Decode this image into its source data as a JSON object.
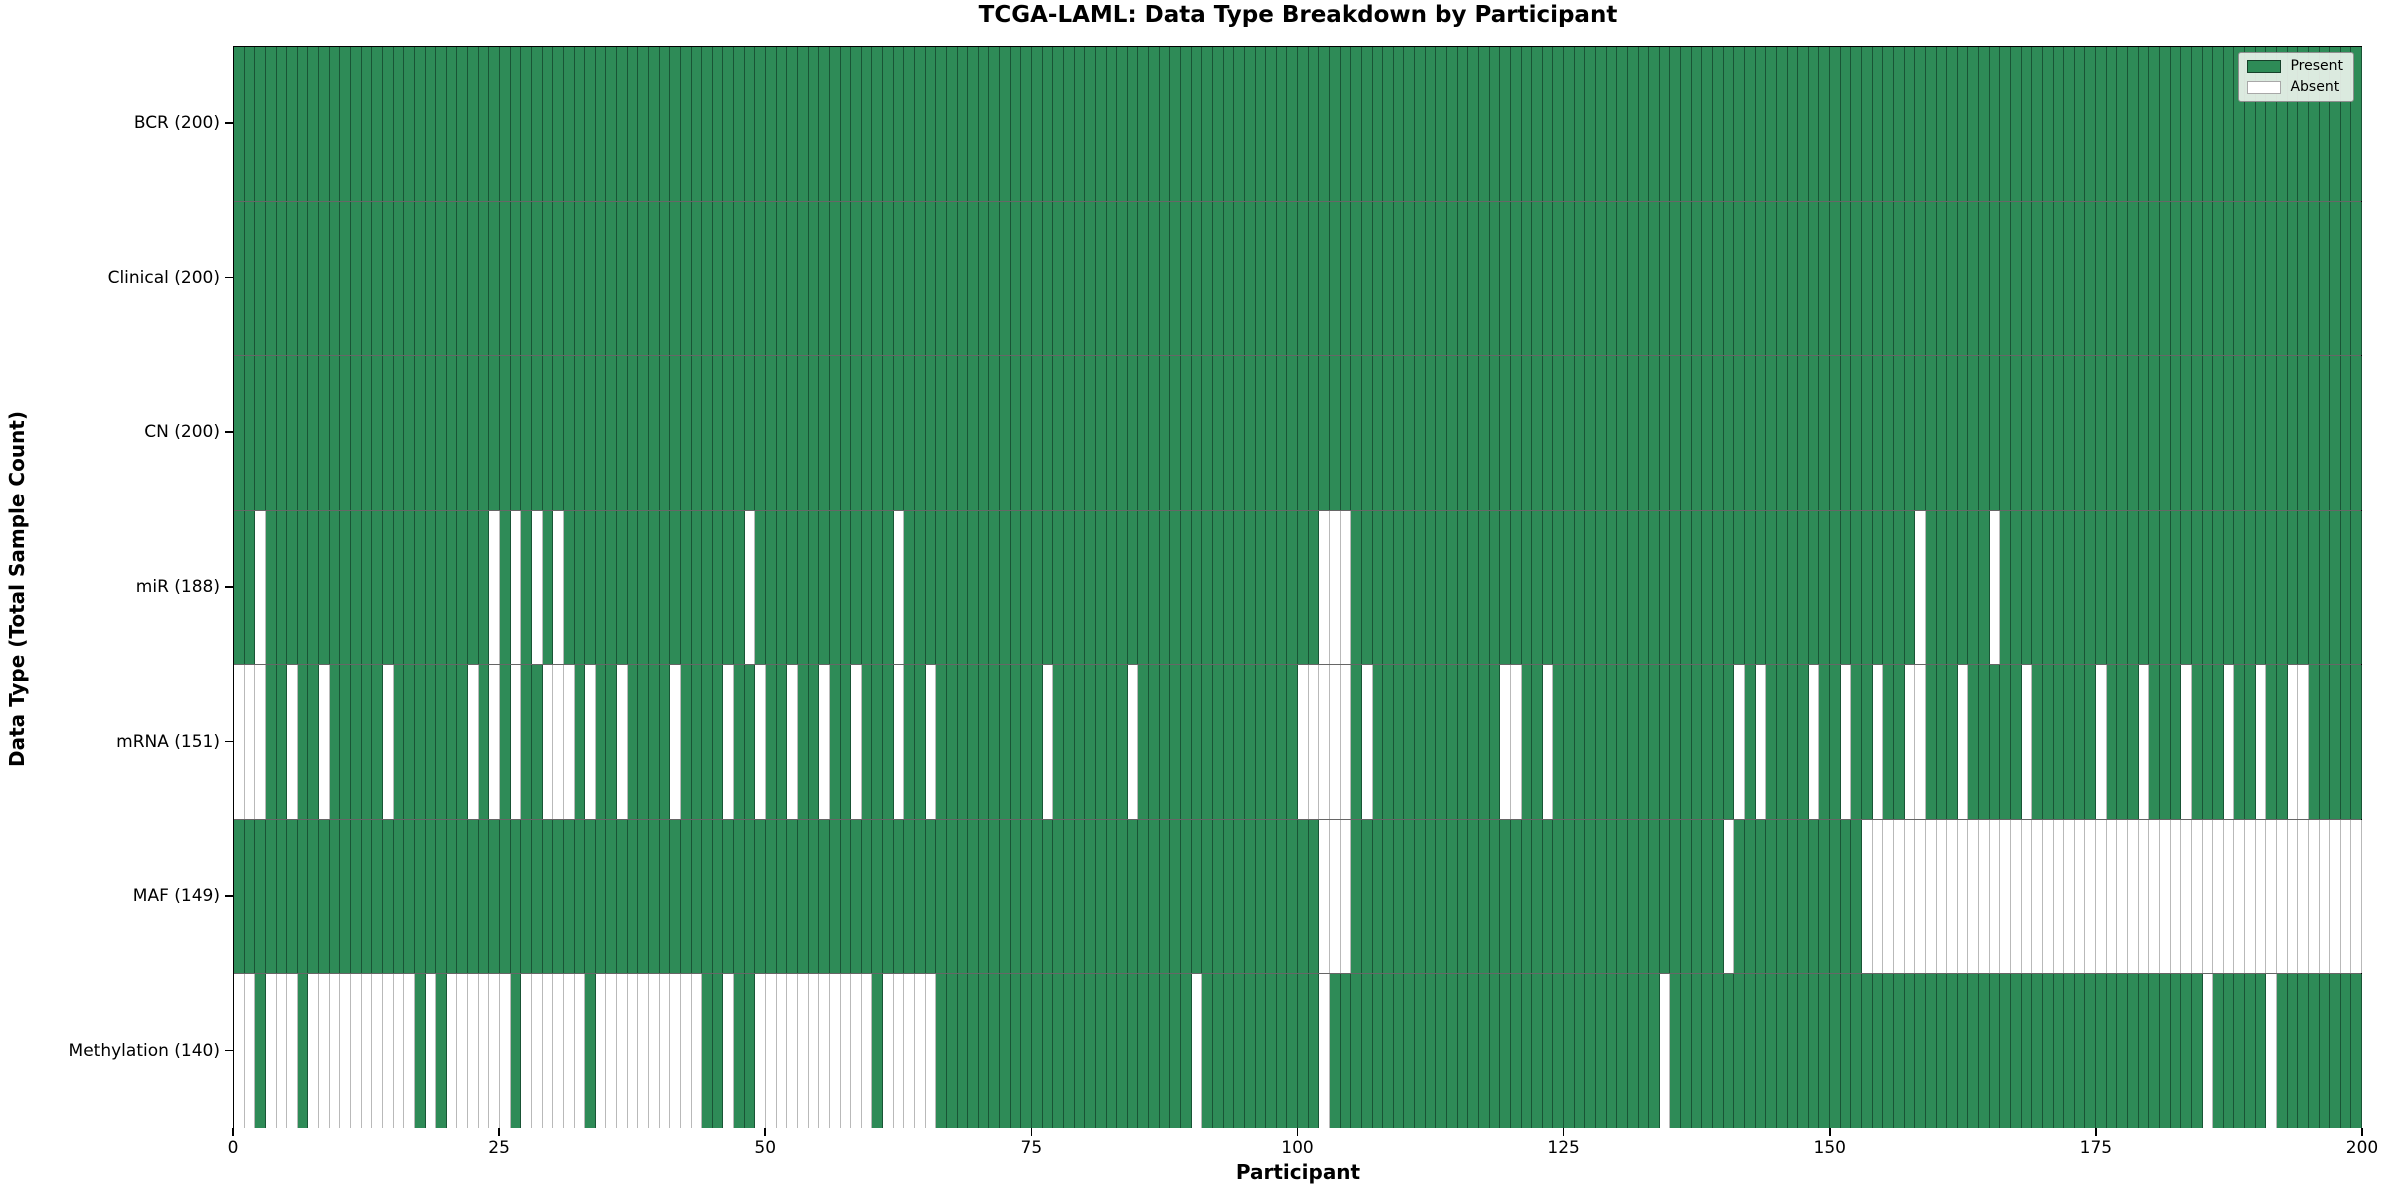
{
  "chart_data": {
    "type": "heatmap",
    "title": "TCGA-LAML: Data Type Breakdown by Participant",
    "xlabel": "Participant",
    "ylabel": "Data Type (Total Sample Count)",
    "n_participants": 200,
    "x_ticks": [
      0,
      25,
      50,
      75,
      100,
      125,
      150,
      175,
      200
    ],
    "legend": {
      "present_label": "Present",
      "absent_label": "Absent",
      "position": "upper right"
    },
    "colors": {
      "present": "#2e8b57",
      "absent": "#ffffff"
    },
    "rows": [
      {
        "label": "BCR (200)",
        "data_type": "BCR",
        "total_count": 200,
        "absent_participants": []
      },
      {
        "label": "Clinical (200)",
        "data_type": "Clinical",
        "total_count": 200,
        "absent_participants": []
      },
      {
        "label": "CN (200)",
        "data_type": "CN",
        "total_count": 200,
        "absent_participants": []
      },
      {
        "label": "miR (188)",
        "data_type": "miR",
        "total_count": 188,
        "absent_participants": [
          2,
          24,
          26,
          28,
          30,
          48,
          62,
          102,
          103,
          104,
          158,
          165
        ]
      },
      {
        "label": "mRNA (151)",
        "data_type": "mRNA",
        "total_count": 151,
        "absent_participants": [
          0,
          1,
          2,
          5,
          8,
          14,
          22,
          24,
          26,
          29,
          30,
          31,
          33,
          36,
          41,
          46,
          49,
          52,
          55,
          58,
          62,
          65,
          76,
          84,
          100,
          101,
          102,
          103,
          104,
          106,
          119,
          120,
          123,
          141,
          143,
          148,
          151,
          154,
          157,
          158,
          162,
          168,
          175,
          179,
          183,
          187,
          190,
          193,
          194
        ]
      },
      {
        "label": "MAF (149)",
        "data_type": "MAF",
        "total_count": 149,
        "absent_participants": [
          102,
          103,
          104,
          140,
          153,
          154,
          155,
          156,
          157,
          158,
          159,
          160,
          161,
          162,
          163,
          164,
          165,
          166,
          167,
          168,
          169,
          170,
          171,
          172,
          173,
          174,
          175,
          176,
          177,
          178,
          179,
          180,
          181,
          182,
          183,
          184,
          185,
          186,
          187,
          188,
          189,
          190,
          191,
          192,
          193,
          194,
          195,
          196,
          197,
          198,
          199
        ]
      },
      {
        "label": "Methylation (140)",
        "data_type": "Methylation",
        "total_count": 140,
        "absent_participants": [
          0,
          1,
          3,
          4,
          5,
          7,
          8,
          9,
          10,
          11,
          12,
          13,
          14,
          15,
          16,
          18,
          20,
          21,
          22,
          23,
          24,
          25,
          27,
          28,
          29,
          30,
          31,
          32,
          34,
          35,
          36,
          37,
          38,
          39,
          40,
          41,
          42,
          43,
          46,
          49,
          50,
          51,
          52,
          53,
          54,
          55,
          56,
          57,
          58,
          59,
          61,
          62,
          63,
          64,
          65,
          90,
          102,
          134,
          185,
          191
        ]
      }
    ]
  }
}
